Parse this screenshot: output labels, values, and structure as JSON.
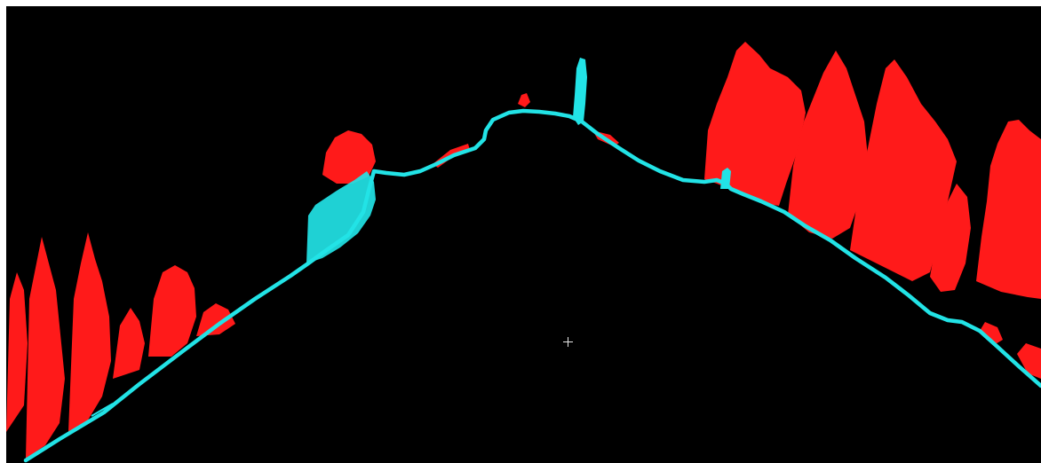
{
  "view": {
    "background_color": "#000000",
    "frame_color": "#ffffff"
  },
  "classes": [
    {
      "id": "ground",
      "color": "#22e3e6"
    },
    {
      "id": "vegetation",
      "color": "#ff1a1a"
    }
  ],
  "overlay": {
    "cursor_icon": "crosshair-icon"
  }
}
